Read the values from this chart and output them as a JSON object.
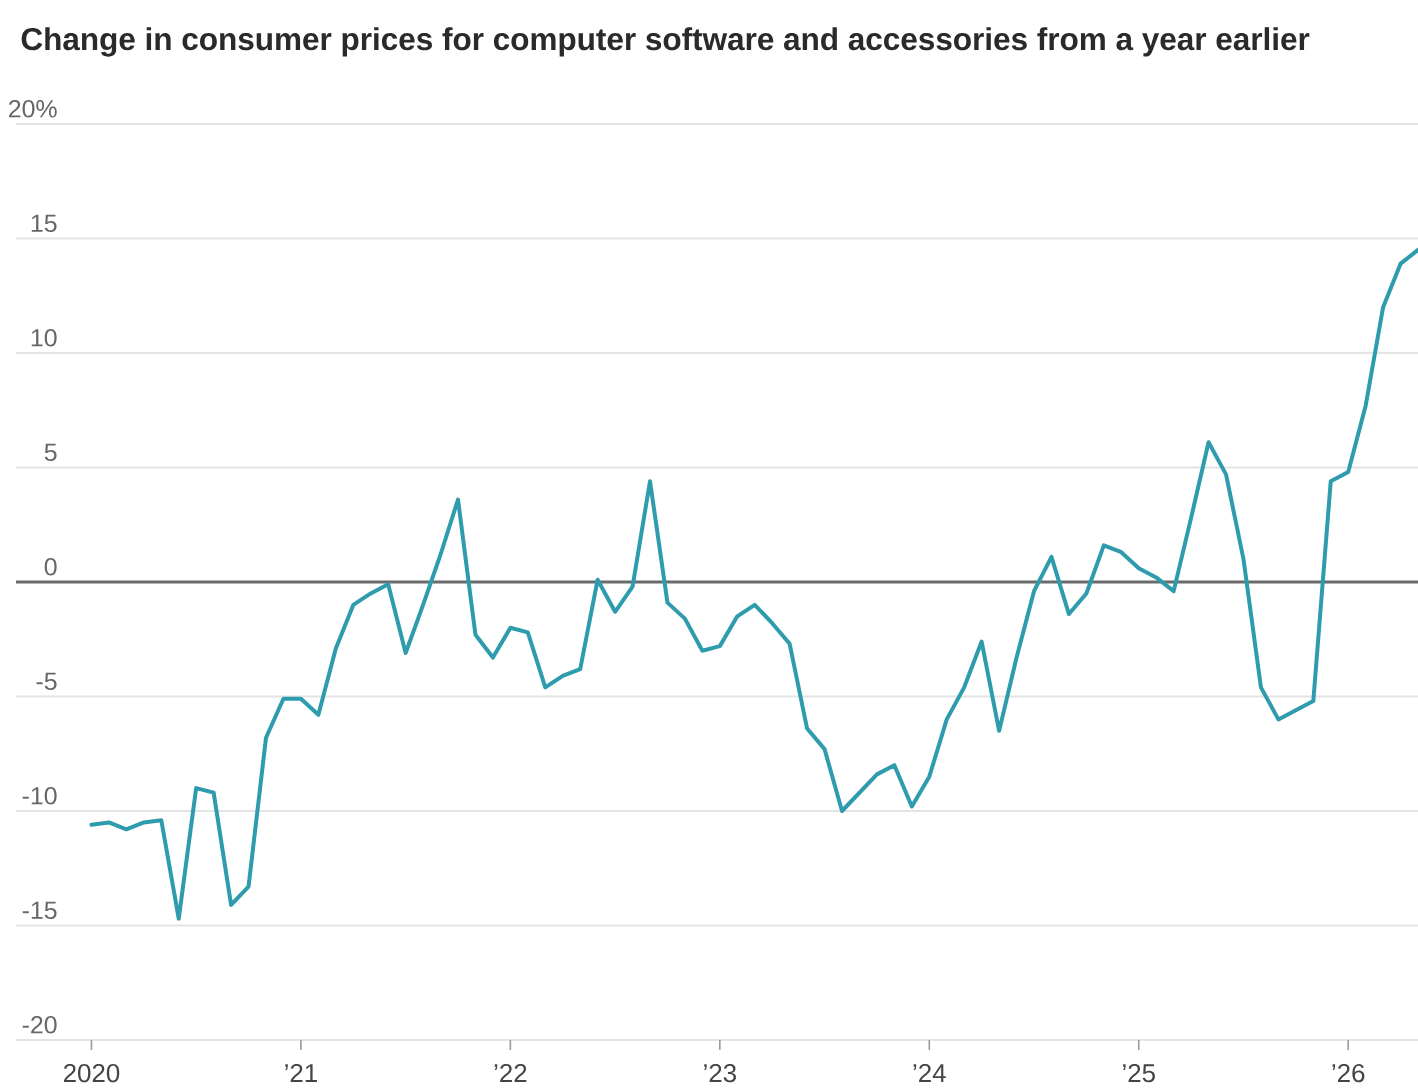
{
  "chart_data": {
    "type": "line",
    "title": "Change in consumer prices for computer software and accessories from a year earlier",
    "x": [
      "2020-01",
      "2020-02",
      "2020-03",
      "2020-04",
      "2020-05",
      "2020-06",
      "2020-07",
      "2020-08",
      "2020-09",
      "2020-10",
      "2020-11",
      "2020-12",
      "2021-01",
      "2021-02",
      "2021-03",
      "2021-04",
      "2021-05",
      "2021-06",
      "2021-07",
      "2021-08",
      "2021-09",
      "2021-10",
      "2021-11",
      "2021-12",
      "2022-01",
      "2022-02",
      "2022-03",
      "2022-04",
      "2022-05",
      "2022-06",
      "2022-07",
      "2022-08",
      "2022-09",
      "2022-10",
      "2022-11",
      "2022-12",
      "2023-01",
      "2023-02",
      "2023-03",
      "2023-04",
      "2023-05",
      "2023-06",
      "2023-07",
      "2023-08",
      "2023-09",
      "2023-10",
      "2023-11",
      "2023-12",
      "2024-01",
      "2024-02",
      "2024-03",
      "2024-04",
      "2024-05",
      "2024-06",
      "2024-07",
      "2024-08",
      "2024-09",
      "2024-10",
      "2024-11",
      "2024-12",
      "2025-01",
      "2025-02",
      "2025-03",
      "2025-04",
      "2025-05",
      "2025-06",
      "2025-07",
      "2025-08",
      "2025-09",
      "2025-10",
      "2025-11",
      "2025-12",
      "2026-01",
      "2026-02",
      "2026-03",
      "2026-04",
      "2026-05"
    ],
    "values": [
      -10.6,
      -10.5,
      -10.8,
      -10.5,
      -10.4,
      -14.7,
      -9.0,
      -9.2,
      -14.1,
      -13.3,
      -6.8,
      -5.1,
      -5.1,
      -5.8,
      -2.9,
      -1.0,
      -0.5,
      -0.1,
      -3.1,
      -1.0,
      1.2,
      3.6,
      -2.3,
      -3.3,
      -2.0,
      -2.2,
      -4.6,
      -4.1,
      -3.8,
      0.1,
      -1.3,
      -0.2,
      4.4,
      -0.9,
      -1.6,
      -3.0,
      -2.8,
      -1.5,
      -1.0,
      -1.8,
      -2.7,
      -6.4,
      -7.3,
      -10.0,
      -9.2,
      -8.4,
      -8.0,
      -9.8,
      -8.5,
      -6.0,
      -4.6,
      -2.6,
      -6.5,
      -3.3,
      -0.4,
      1.1,
      -1.4,
      -0.5,
      1.6,
      1.3,
      0.6,
      0.2,
      -0.4,
      2.8,
      6.1,
      4.7,
      1.0,
      -4.6,
      -6.0,
      -5.6,
      -5.2,
      4.4,
      4.8,
      7.7,
      12.0,
      13.9,
      14.5
    ],
    "color": "#2e9cad",
    "xlim": [
      "2019-08-22",
      "2026-05"
    ],
    "xticks": [
      {
        "value": "2020",
        "label": "2020"
      },
      {
        "value": "2021",
        "label": "’21"
      },
      {
        "value": "2022",
        "label": "’22"
      },
      {
        "value": "2023",
        "label": "’23"
      },
      {
        "value": "2024",
        "label": "’24"
      },
      {
        "value": "2025",
        "label": "’25"
      },
      {
        "value": "2026",
        "label": "’26"
      }
    ],
    "ylim": [
      -20,
      20
    ],
    "yticks": [
      {
        "value": 20,
        "label": "20%"
      },
      15,
      10,
      5,
      0,
      -5,
      -10,
      -15,
      -20
    ],
    "grid": "y",
    "ref_lines": [
      {
        "axis": "y",
        "value": 0,
        "color": "#6b6b6b"
      }
    ]
  }
}
